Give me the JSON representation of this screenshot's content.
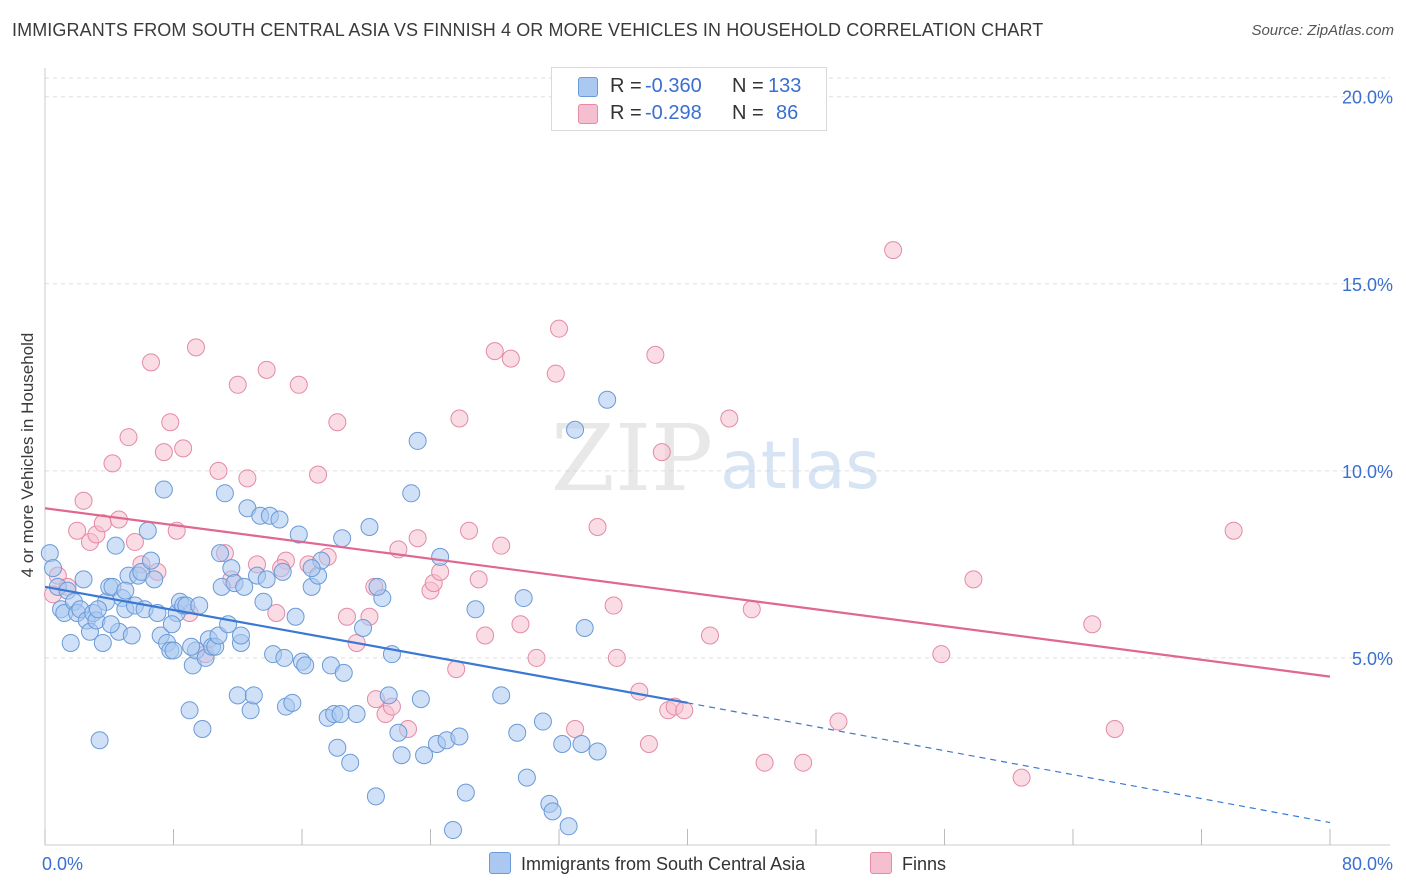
{
  "title": "IMMIGRANTS FROM SOUTH CENTRAL ASIA VS FINNISH 4 OR MORE VEHICLES IN HOUSEHOLD CORRELATION CHART",
  "source": "Source: ZipAtlas.com",
  "watermark": {
    "zip": "ZIP",
    "atlas": "atlas"
  },
  "stats": [
    {
      "r_label": "R = ",
      "r_value": "-0.360",
      "n_label": "N = ",
      "n_value": "133"
    },
    {
      "r_label": "R = ",
      "r_value": "-0.298",
      "n_label": "N = ",
      "n_value": "86"
    }
  ],
  "legend": [
    {
      "label": "Immigrants from South Central Asia"
    },
    {
      "label": "Finns"
    }
  ],
  "colors": {
    "blue_fill": "#aac8f0",
    "blue_stroke": "#6a9ad8",
    "blue_line": "#3a78d4",
    "pink_fill": "#f5bfcf",
    "pink_stroke": "#e48aa6",
    "pink_line": "#e06790",
    "tick_label": "#3a6fd0",
    "grid": "#dddddd"
  },
  "chart_data": {
    "type": "scatter",
    "title": "IMMIGRANTS FROM SOUTH CENTRAL ASIA VS FINNISH 4 OR MORE VEHICLES IN HOUSEHOLD CORRELATION CHART",
    "xlabel": "",
    "ylabel": "4 or more Vehicles in Household",
    "xlim": [
      0,
      80
    ],
    "ylim": [
      0,
      20.5
    ],
    "x_tick_labels": [
      "0.0%",
      "80.0%"
    ],
    "y_ticks": [
      5,
      10,
      15,
      20
    ],
    "y_tick_labels": [
      "5.0%",
      "10.0%",
      "15.0%",
      "20.0%"
    ],
    "grid": true,
    "legend_position": "bottom",
    "series": [
      {
        "name": "Immigrants from South Central Asia",
        "color": "#aac8f0",
        "trend": {
          "x0": 0,
          "y0": 6.9,
          "x1": 40,
          "y1": 3.8,
          "dashed_to_x": 80,
          "dashed_to_y": 0.6
        },
        "points": [
          [
            0.3,
            7.8
          ],
          [
            0.5,
            7.4
          ],
          [
            0.8,
            6.9
          ],
          [
            1.0,
            6.3
          ],
          [
            1.2,
            6.2
          ],
          [
            1.4,
            6.8
          ],
          [
            1.6,
            5.4
          ],
          [
            1.8,
            6.5
          ],
          [
            2.0,
            6.2
          ],
          [
            2.2,
            6.3
          ],
          [
            2.4,
            7.1
          ],
          [
            2.6,
            6.0
          ],
          [
            2.8,
            5.7
          ],
          [
            3.0,
            6.2
          ],
          [
            3.2,
            6.0
          ],
          [
            3.4,
            2.8
          ],
          [
            3.6,
            5.4
          ],
          [
            3.8,
            6.5
          ],
          [
            4.0,
            6.9
          ],
          [
            4.2,
            6.9
          ],
          [
            4.4,
            8.0
          ],
          [
            4.6,
            5.7
          ],
          [
            4.8,
            6.6
          ],
          [
            5.0,
            6.3
          ],
          [
            5.2,
            7.2
          ],
          [
            5.4,
            5.6
          ],
          [
            5.6,
            6.4
          ],
          [
            5.8,
            7.2
          ],
          [
            6.0,
            7.3
          ],
          [
            6.2,
            6.3
          ],
          [
            6.4,
            8.4
          ],
          [
            6.6,
            7.6
          ],
          [
            6.8,
            7.1
          ],
          [
            7.0,
            6.2
          ],
          [
            7.2,
            5.6
          ],
          [
            7.4,
            9.5
          ],
          [
            7.6,
            5.4
          ],
          [
            7.8,
            5.2
          ],
          [
            8.0,
            5.2
          ],
          [
            8.2,
            6.2
          ],
          [
            8.4,
            6.5
          ],
          [
            8.6,
            6.4
          ],
          [
            8.8,
            6.4
          ],
          [
            9.0,
            3.6
          ],
          [
            9.2,
            4.8
          ],
          [
            9.4,
            5.2
          ],
          [
            9.6,
            6.4
          ],
          [
            9.8,
            3.1
          ],
          [
            10.0,
            5.0
          ],
          [
            10.2,
            5.5
          ],
          [
            10.4,
            5.3
          ],
          [
            10.6,
            5.3
          ],
          [
            10.8,
            5.6
          ],
          [
            11.0,
            6.9
          ],
          [
            11.2,
            9.4
          ],
          [
            11.4,
            5.9
          ],
          [
            11.6,
            7.4
          ],
          [
            11.8,
            7.0
          ],
          [
            12.0,
            4.0
          ],
          [
            12.2,
            5.4
          ],
          [
            12.4,
            6.9
          ],
          [
            12.6,
            9.0
          ],
          [
            12.8,
            3.6
          ],
          [
            13.0,
            4.0
          ],
          [
            13.2,
            7.2
          ],
          [
            13.4,
            8.8
          ],
          [
            13.6,
            6.5
          ],
          [
            13.8,
            7.1
          ],
          [
            14.0,
            8.8
          ],
          [
            14.2,
            5.1
          ],
          [
            14.6,
            8.7
          ],
          [
            14.8,
            7.3
          ],
          [
            15.0,
            3.7
          ],
          [
            15.4,
            3.8
          ],
          [
            15.6,
            6.1
          ],
          [
            15.8,
            8.3
          ],
          [
            16.0,
            4.9
          ],
          [
            16.2,
            4.8
          ],
          [
            16.6,
            6.9
          ],
          [
            17.0,
            7.2
          ],
          [
            17.2,
            7.6
          ],
          [
            17.6,
            3.4
          ],
          [
            17.8,
            4.8
          ],
          [
            18.0,
            3.5
          ],
          [
            18.2,
            2.6
          ],
          [
            18.4,
            3.5
          ],
          [
            18.6,
            4.6
          ],
          [
            19.0,
            2.2
          ],
          [
            19.4,
            3.5
          ],
          [
            19.8,
            5.8
          ],
          [
            20.2,
            8.5
          ],
          [
            20.6,
            1.3
          ],
          [
            21.0,
            6.6
          ],
          [
            21.4,
            4.0
          ],
          [
            21.6,
            5.1
          ],
          [
            22.0,
            3.0
          ],
          [
            22.2,
            2.4
          ],
          [
            22.8,
            9.4
          ],
          [
            23.2,
            10.8
          ],
          [
            23.4,
            3.9
          ],
          [
            23.6,
            2.4
          ],
          [
            24.4,
            2.7
          ],
          [
            25.0,
            2.8
          ],
          [
            25.4,
            0.4
          ],
          [
            25.8,
            2.9
          ],
          [
            26.2,
            1.4
          ],
          [
            26.8,
            6.3
          ],
          [
            28.4,
            4.0
          ],
          [
            29.4,
            3.0
          ],
          [
            29.8,
            6.6
          ],
          [
            30.0,
            1.8
          ],
          [
            31.0,
            3.3
          ],
          [
            31.4,
            1.1
          ],
          [
            31.6,
            0.9
          ],
          [
            32.2,
            2.7
          ],
          [
            32.6,
            0.5
          ],
          [
            33.0,
            11.1
          ],
          [
            33.4,
            2.7
          ],
          [
            33.6,
            5.8
          ],
          [
            34.4,
            2.5
          ],
          [
            35.0,
            11.9
          ],
          [
            16.6,
            7.4
          ],
          [
            5.0,
            6.8
          ],
          [
            3.3,
            6.3
          ],
          [
            12.2,
            5.6
          ],
          [
            18.5,
            8.2
          ],
          [
            9.1,
            5.3
          ],
          [
            14.9,
            5.0
          ],
          [
            24.6,
            7.7
          ],
          [
            7.9,
            5.9
          ],
          [
            4.1,
            5.9
          ],
          [
            10.9,
            7.8
          ],
          [
            20.7,
            6.9
          ]
        ]
      },
      {
        "name": "Finns",
        "color": "#f5bfcf",
        "trend": {
          "x0": 0,
          "y0": 9.0,
          "x1": 80,
          "y1": 4.5
        },
        "points": [
          [
            0.5,
            6.7
          ],
          [
            0.8,
            7.2
          ],
          [
            1.4,
            6.9
          ],
          [
            2.0,
            8.4
          ],
          [
            2.4,
            9.2
          ],
          [
            2.8,
            8.1
          ],
          [
            3.2,
            8.3
          ],
          [
            3.6,
            8.6
          ],
          [
            4.2,
            10.2
          ],
          [
            4.6,
            8.7
          ],
          [
            5.2,
            10.9
          ],
          [
            5.6,
            8.1
          ],
          [
            6.0,
            7.5
          ],
          [
            6.6,
            12.9
          ],
          [
            7.0,
            7.3
          ],
          [
            7.4,
            10.5
          ],
          [
            7.8,
            11.3
          ],
          [
            8.2,
            8.4
          ],
          [
            8.6,
            10.6
          ],
          [
            9.0,
            6.2
          ],
          [
            9.4,
            13.3
          ],
          [
            10.0,
            5.1
          ],
          [
            10.8,
            10.0
          ],
          [
            11.2,
            7.8
          ],
          [
            11.6,
            7.1
          ],
          [
            12.0,
            12.3
          ],
          [
            12.6,
            9.8
          ],
          [
            13.2,
            7.5
          ],
          [
            13.8,
            12.7
          ],
          [
            14.4,
            6.2
          ],
          [
            15.0,
            7.6
          ],
          [
            15.8,
            12.3
          ],
          [
            16.4,
            7.5
          ],
          [
            17.0,
            9.9
          ],
          [
            17.6,
            7.7
          ],
          [
            18.2,
            11.3
          ],
          [
            18.8,
            6.1
          ],
          [
            19.4,
            5.4
          ],
          [
            20.2,
            6.1
          ],
          [
            20.6,
            3.9
          ],
          [
            21.2,
            3.5
          ],
          [
            21.6,
            3.7
          ],
          [
            22.0,
            7.9
          ],
          [
            22.6,
            3.1
          ],
          [
            23.2,
            8.2
          ],
          [
            24.0,
            6.8
          ],
          [
            24.2,
            7.0
          ],
          [
            24.6,
            7.3
          ],
          [
            25.6,
            4.7
          ],
          [
            25.8,
            11.4
          ],
          [
            26.4,
            8.4
          ],
          [
            27.0,
            7.1
          ],
          [
            27.4,
            5.6
          ],
          [
            28.0,
            13.2
          ],
          [
            28.4,
            8.0
          ],
          [
            29.0,
            13.0
          ],
          [
            29.6,
            5.9
          ],
          [
            30.6,
            5.0
          ],
          [
            31.8,
            12.6
          ],
          [
            32.0,
            13.8
          ],
          [
            33.0,
            3.1
          ],
          [
            34.4,
            8.5
          ],
          [
            35.4,
            6.4
          ],
          [
            35.6,
            5.0
          ],
          [
            37.0,
            4.1
          ],
          [
            37.6,
            2.7
          ],
          [
            38.0,
            13.1
          ],
          [
            38.4,
            10.5
          ],
          [
            38.8,
            3.6
          ],
          [
            39.2,
            3.7
          ],
          [
            39.8,
            3.6
          ],
          [
            41.4,
            5.6
          ],
          [
            42.6,
            11.4
          ],
          [
            44.0,
            6.3
          ],
          [
            44.8,
            2.2
          ],
          [
            47.2,
            2.2
          ],
          [
            49.4,
            3.3
          ],
          [
            52.8,
            15.9
          ],
          [
            55.8,
            5.1
          ],
          [
            57.8,
            7.1
          ],
          [
            60.8,
            1.8
          ],
          [
            65.2,
            5.9
          ],
          [
            66.6,
            3.1
          ],
          [
            74.0,
            8.4
          ],
          [
            20.5,
            6.9
          ],
          [
            14.7,
            7.4
          ]
        ]
      }
    ]
  }
}
